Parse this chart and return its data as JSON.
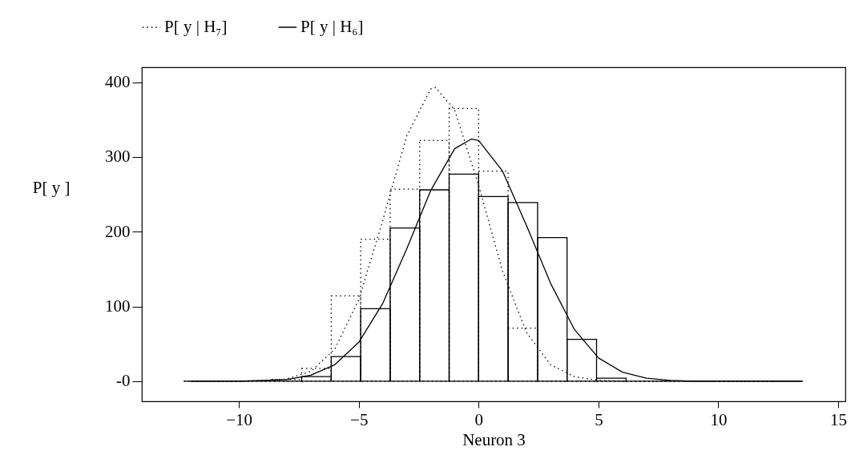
{
  "chart_data": {
    "type": "histogram",
    "xlabel": "Neuron 3",
    "ylabel": "P[ y ]",
    "bins": [
      -12.3,
      -11.07,
      -9.84,
      -8.61,
      -7.38,
      -6.15,
      -4.92,
      -3.69,
      -2.46,
      -1.23,
      0,
      1.23,
      2.46,
      3.69,
      4.92,
      6.15,
      7.38,
      8.61,
      9.84,
      11.07,
      12.3,
      13.53
    ],
    "series": [
      {
        "color": "#000000",
        "line_style": "solid",
        "values": [
          0,
          0,
          0,
          0,
          6,
          33,
          97,
          205,
          256,
          277,
          247,
          239,
          192,
          56,
          4,
          0,
          0,
          0,
          0,
          0,
          0
        ]
      },
      {
        "color": "#000000",
        "line_style": "dotted",
        "values": [
          0,
          0,
          0,
          2,
          17,
          114,
          190,
          257,
          322,
          365,
          281,
          71,
          0,
          0,
          0,
          0,
          0,
          0,
          0,
          0,
          0
        ]
      },
      {
        "type": "line",
        "name": "P[ y | H₇]",
        "color": "#000000",
        "line_style": "dotted",
        "x": [
          -12,
          -10,
          -9,
          -8,
          -7,
          -6,
          -5,
          -4,
          -3,
          -2,
          -1.8,
          -1,
          0,
          1,
          2,
          3,
          4,
          5,
          6,
          8,
          10,
          13.5
        ],
        "values": [
          0,
          0,
          1,
          3,
          13,
          43,
          109,
          215,
          328,
          391,
          393,
          363,
          262,
          147,
          65,
          22,
          6,
          1,
          0,
          0,
          0,
          0
        ]
      },
      {
        "type": "line",
        "name": "P[ y | H₆]",
        "color": "#000000",
        "line_style": "solid",
        "x": [
          -12,
          -10,
          -9,
          -8,
          -7,
          -6,
          -5,
          -4,
          -3,
          -2,
          -1,
          -0.3,
          0,
          1,
          2,
          3,
          4,
          5,
          6,
          7,
          8,
          9,
          11,
          13.5
        ],
        "values": [
          0,
          0,
          1,
          2,
          8,
          22,
          52,
          104,
          177,
          255,
          311,
          324,
          322,
          281,
          208,
          131,
          69,
          31,
          12,
          4,
          1,
          0,
          0,
          0
        ]
      }
    ],
    "xlim": [
      -14.05,
      15.3
    ],
    "ylim": [
      -27,
      420
    ],
    "xticks": [
      -10,
      -5,
      0,
      5,
      10,
      15
    ],
    "yticks": [
      {
        "value": 0,
        "label": "-0"
      },
      100,
      200,
      300,
      400
    ],
    "grid": false,
    "legend": "top"
  }
}
